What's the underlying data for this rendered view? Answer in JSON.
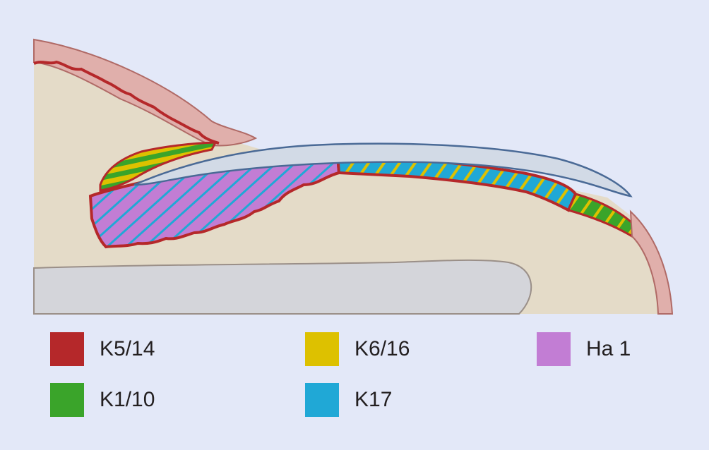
{
  "colors": {
    "background": "#e3e8f8",
    "tissue": "#e4dbc8",
    "skin_edge": "#e0afab",
    "skin_outline": "#b06a66",
    "bone": "#d4d5da",
    "bone_outline": "#9a8f88",
    "nail_plate": "#d2dae6",
    "nail_outline": "#4a6a96"
  },
  "legend": [
    {
      "key": "K5/14",
      "color": "#b5282a",
      "icon": "red-swatch"
    },
    {
      "key": "K1/10",
      "color": "#3aa42a",
      "icon": "green-swatch"
    },
    {
      "key": "K6/16",
      "color": "#ddc100",
      "icon": "yellow-swatch"
    },
    {
      "key": "K17",
      "color": "#20a8d6",
      "icon": "blue-swatch"
    },
    {
      "key": "Ha 1",
      "color": "#c27dd4",
      "icon": "purple-swatch"
    }
  ]
}
